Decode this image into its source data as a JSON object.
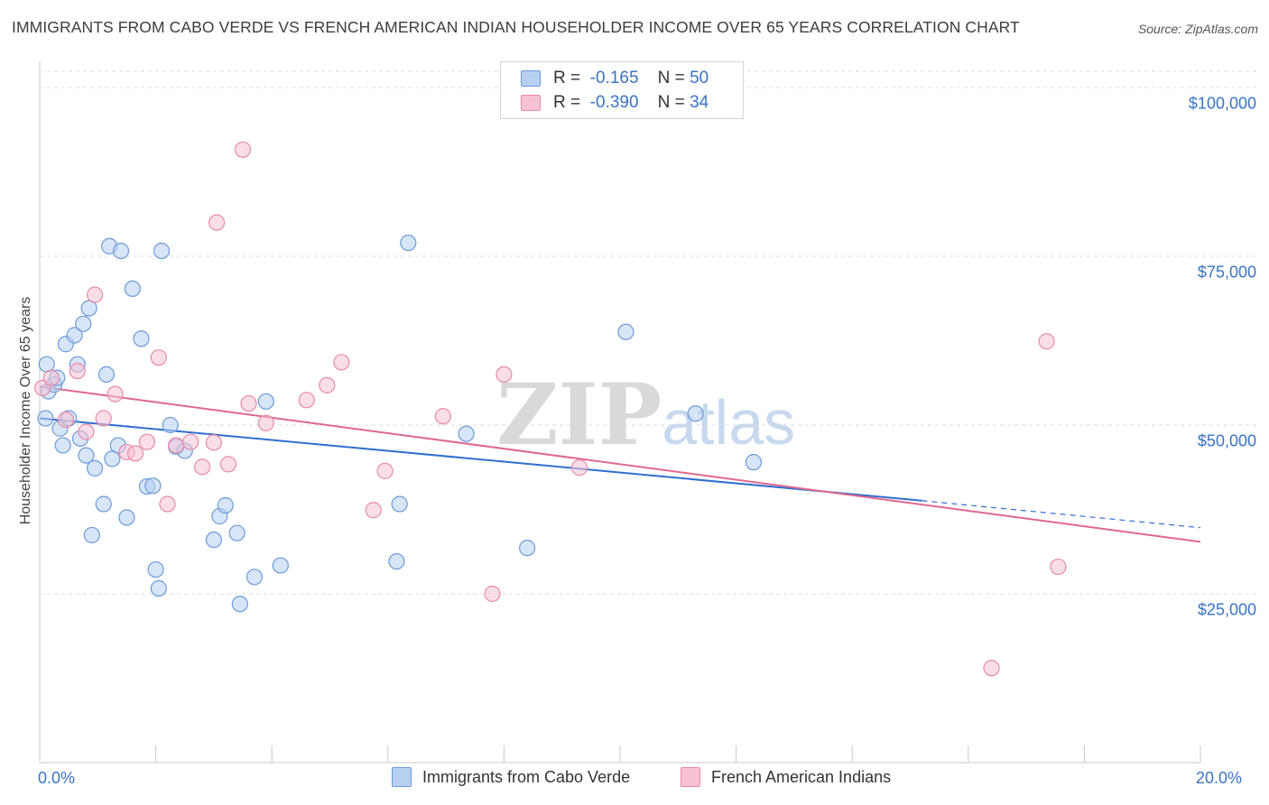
{
  "header": {
    "title": "IMMIGRANTS FROM CABO VERDE VS FRENCH AMERICAN INDIAN HOUSEHOLDER INCOME OVER 65 YEARS CORRELATION CHART",
    "source": "Source: ZipAtlas.com"
  },
  "watermark": {
    "zip": "ZIP",
    "atlas": "atlas"
  },
  "legend": {
    "series": [
      {
        "r_label": "R =",
        "r_value": "-0.165",
        "n_label": "N =",
        "n_value": "50"
      },
      {
        "r_label": "R =",
        "r_value": "-0.390",
        "n_label": "N =",
        "n_value": "34"
      }
    ]
  },
  "colors": {
    "blue_fill": "#b7d0f2",
    "blue_stroke": "#6c9bd8",
    "blue_line": "#2f6fcf",
    "pink_fill": "#f6c2d3",
    "pink_stroke": "#e88aa9",
    "pink_line": "#e0688f",
    "tick_text": "#3a73c4"
  },
  "chart_data": {
    "type": "scatter",
    "title": "IMMIGRANTS FROM CABO VERDE VS FRENCH AMERICAN INDIAN HOUSEHOLDER INCOME OVER 65 YEARS CORRELATION CHART",
    "xlabel": "",
    "ylabel": "Householder Income Over 65 years",
    "xlim": [
      0,
      20
    ],
    "ylim": [
      0,
      102000
    ],
    "x_tick_labels": [
      "0.0%",
      "20.0%"
    ],
    "y_ticks": [
      {
        "value": 25000,
        "label": "$25,000"
      },
      {
        "value": 50000,
        "label": "$50,000"
      },
      {
        "value": 75000,
        "label": "$75,000"
      },
      {
        "value": 100000,
        "label": "$100,000"
      }
    ],
    "grid": true,
    "series": [
      {
        "name": "Immigrants from Cabo Verde",
        "color": "blue",
        "trend": {
          "x0": 0,
          "y0": 51000,
          "x1": 15.2,
          "y1": 38800,
          "dashed_to_x": 20,
          "dashed_to_y": 34800
        },
        "points": [
          [
            0.1,
            51000
          ],
          [
            0.12,
            59000
          ],
          [
            0.15,
            55000
          ],
          [
            0.25,
            56000
          ],
          [
            0.35,
            49500
          ],
          [
            0.4,
            47000
          ],
          [
            0.45,
            62000
          ],
          [
            0.5,
            51000
          ],
          [
            0.6,
            63300
          ],
          [
            0.65,
            59000
          ],
          [
            0.7,
            48000
          ],
          [
            0.75,
            65000
          ],
          [
            0.8,
            45500
          ],
          [
            0.85,
            67300
          ],
          [
            0.9,
            33700
          ],
          [
            0.95,
            43600
          ],
          [
            1.1,
            38300
          ],
          [
            1.15,
            57500
          ],
          [
            1.2,
            76500
          ],
          [
            1.25,
            45000
          ],
          [
            1.35,
            47000
          ],
          [
            1.4,
            75800
          ],
          [
            1.5,
            36300
          ],
          [
            1.6,
            70200
          ],
          [
            1.75,
            62800
          ],
          [
            1.85,
            40900
          ],
          [
            1.95,
            41000
          ],
          [
            2.0,
            28600
          ],
          [
            2.05,
            25800
          ],
          [
            2.1,
            75800
          ],
          [
            2.25,
            50000
          ],
          [
            2.35,
            46800
          ],
          [
            2.5,
            46200
          ],
          [
            3.0,
            33000
          ],
          [
            3.1,
            36500
          ],
          [
            3.2,
            38100
          ],
          [
            3.4,
            34000
          ],
          [
            3.45,
            23500
          ],
          [
            3.7,
            27500
          ],
          [
            3.9,
            53500
          ],
          [
            4.15,
            29200
          ],
          [
            6.15,
            29800
          ],
          [
            6.2,
            38300
          ],
          [
            6.35,
            77000
          ],
          [
            7.35,
            48700
          ],
          [
            8.4,
            31800
          ],
          [
            10.1,
            63800
          ],
          [
            11.3,
            51700
          ],
          [
            12.3,
            44500
          ],
          [
            0.3,
            57000
          ]
        ]
      },
      {
        "name": "French American Indians",
        "color": "pink",
        "trend": {
          "x0": 0,
          "y0": 55700,
          "x1": 20,
          "y1": 32700
        },
        "points": [
          [
            0.05,
            55500
          ],
          [
            0.2,
            57000
          ],
          [
            0.45,
            50800
          ],
          [
            0.65,
            58000
          ],
          [
            0.8,
            49000
          ],
          [
            0.95,
            69300
          ],
          [
            1.1,
            51000
          ],
          [
            1.3,
            54600
          ],
          [
            1.5,
            46000
          ],
          [
            1.65,
            45800
          ],
          [
            1.85,
            47500
          ],
          [
            2.05,
            60000
          ],
          [
            2.2,
            38300
          ],
          [
            2.35,
            47000
          ],
          [
            2.6,
            47500
          ],
          [
            2.8,
            43800
          ],
          [
            3.0,
            47400
          ],
          [
            3.05,
            80000
          ],
          [
            3.25,
            44200
          ],
          [
            3.5,
            90800
          ],
          [
            3.6,
            53200
          ],
          [
            3.9,
            50300
          ],
          [
            4.6,
            53700
          ],
          [
            4.95,
            55900
          ],
          [
            5.2,
            59300
          ],
          [
            5.75,
            37400
          ],
          [
            5.95,
            43200
          ],
          [
            6.95,
            51300
          ],
          [
            7.8,
            25000
          ],
          [
            8.0,
            57500
          ],
          [
            9.3,
            43700
          ],
          [
            16.4,
            14000
          ],
          [
            17.35,
            62400
          ],
          [
            17.55,
            29000
          ]
        ]
      }
    ]
  },
  "bottom_legend": {
    "items": [
      {
        "label": "Immigrants from Cabo Verde"
      },
      {
        "label": "French American Indians"
      }
    ]
  }
}
